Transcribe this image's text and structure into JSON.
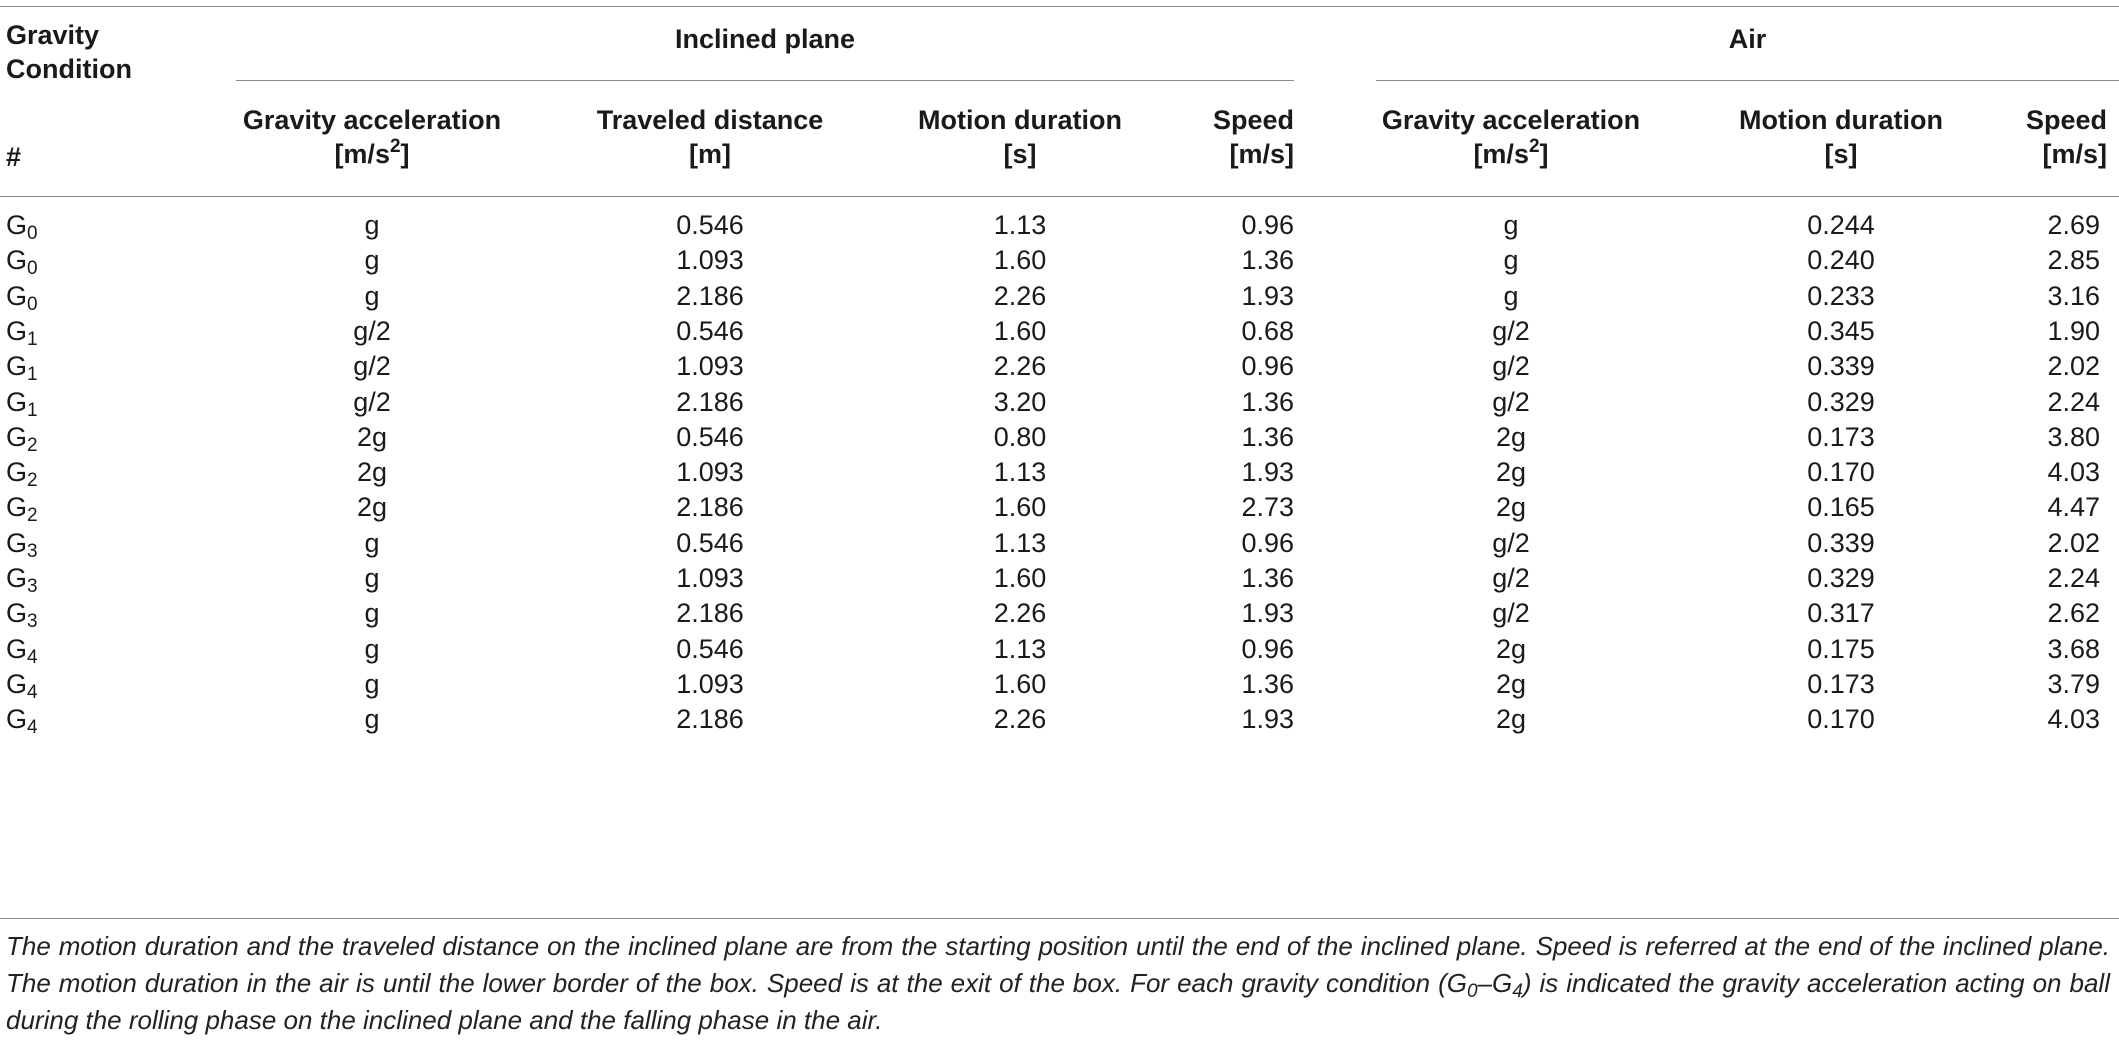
{
  "header": {
    "group_label_line1": "Gravity",
    "group_label_line2": "Condition",
    "hash": "#",
    "inclined_plane": "Inclined plane",
    "air": "Air",
    "ip_cols": [
      {
        "line1": "Gravity acceleration",
        "line2_pre": "[m/s",
        "line2_sup": "2",
        "line2_post": "]"
      },
      {
        "line1": "Traveled distance",
        "line2": "[m]"
      },
      {
        "line1": "Motion duration",
        "line2": "[s]"
      },
      {
        "line1": "Speed",
        "line2": "[m/s]"
      }
    ],
    "air_cols": [
      {
        "line1": "Gravity acceleration",
        "line2_pre": "[m/s",
        "line2_sup": "2",
        "line2_post": "]"
      },
      {
        "line1": "Motion duration",
        "line2": "[s]"
      },
      {
        "line1": "Speed",
        "line2": "[m/s]"
      }
    ]
  },
  "rows": [
    {
      "g": "G",
      "sub": "0",
      "ip_acc": "g",
      "dist": "0.546",
      "ip_dur": "1.13",
      "ip_speed": "0.96",
      "air_acc": "g",
      "air_dur": "0.244",
      "air_speed": "2.69"
    },
    {
      "g": "G",
      "sub": "0",
      "ip_acc": "g",
      "dist": "1.093",
      "ip_dur": "1.60",
      "ip_speed": "1.36",
      "air_acc": "g",
      "air_dur": "0.240",
      "air_speed": "2.85"
    },
    {
      "g": "G",
      "sub": "0",
      "ip_acc": "g",
      "dist": "2.186",
      "ip_dur": "2.26",
      "ip_speed": "1.93",
      "air_acc": "g",
      "air_dur": "0.233",
      "air_speed": "3.16"
    },
    {
      "g": "G",
      "sub": "1",
      "ip_acc": "g/2",
      "dist": "0.546",
      "ip_dur": "1.60",
      "ip_speed": "0.68",
      "air_acc": "g/2",
      "air_dur": "0.345",
      "air_speed": "1.90"
    },
    {
      "g": "G",
      "sub": "1",
      "ip_acc": "g/2",
      "dist": "1.093",
      "ip_dur": "2.26",
      "ip_speed": "0.96",
      "air_acc": "g/2",
      "air_dur": "0.339",
      "air_speed": "2.02"
    },
    {
      "g": "G",
      "sub": "1",
      "ip_acc": "g/2",
      "dist": "2.186",
      "ip_dur": "3.20",
      "ip_speed": "1.36",
      "air_acc": "g/2",
      "air_dur": "0.329",
      "air_speed": "2.24"
    },
    {
      "g": "G",
      "sub": "2",
      "ip_acc": "2g",
      "dist": "0.546",
      "ip_dur": "0.80",
      "ip_speed": "1.36",
      "air_acc": "2g",
      "air_dur": "0.173",
      "air_speed": "3.80"
    },
    {
      "g": "G",
      "sub": "2",
      "ip_acc": "2g",
      "dist": "1.093",
      "ip_dur": "1.13",
      "ip_speed": "1.93",
      "air_acc": "2g",
      "air_dur": "0.170",
      "air_speed": "4.03"
    },
    {
      "g": "G",
      "sub": "2",
      "ip_acc": "2g",
      "dist": "2.186",
      "ip_dur": "1.60",
      "ip_speed": "2.73",
      "air_acc": "2g",
      "air_dur": "0.165",
      "air_speed": "4.47"
    },
    {
      "g": "G",
      "sub": "3",
      "ip_acc": "g",
      "dist": "0.546",
      "ip_dur": "1.13",
      "ip_speed": "0.96",
      "air_acc": "g/2",
      "air_dur": "0.339",
      "air_speed": "2.02"
    },
    {
      "g": "G",
      "sub": "3",
      "ip_acc": "g",
      "dist": "1.093",
      "ip_dur": "1.60",
      "ip_speed": "1.36",
      "air_acc": "g/2",
      "air_dur": "0.329",
      "air_speed": "2.24"
    },
    {
      "g": "G",
      "sub": "3",
      "ip_acc": "g",
      "dist": "2.186",
      "ip_dur": "2.26",
      "ip_speed": "1.93",
      "air_acc": "g/2",
      "air_dur": "0.317",
      "air_speed": "2.62"
    },
    {
      "g": "G",
      "sub": "4",
      "ip_acc": "g",
      "dist": "0.546",
      "ip_dur": "1.13",
      "ip_speed": "0.96",
      "air_acc": "2g",
      "air_dur": "0.175",
      "air_speed": "3.68"
    },
    {
      "g": "G",
      "sub": "4",
      "ip_acc": "g",
      "dist": "1.093",
      "ip_dur": "1.60",
      "ip_speed": "1.36",
      "air_acc": "2g",
      "air_dur": "0.173",
      "air_speed": "3.79"
    },
    {
      "g": "G",
      "sub": "4",
      "ip_acc": "g",
      "dist": "2.186",
      "ip_dur": "2.26",
      "ip_speed": "1.93",
      "air_acc": "2g",
      "air_dur": "0.170",
      "air_speed": "4.03"
    }
  ],
  "note": {
    "part1": "The motion duration and the traveled distance on the inclined plane are from the starting position until the end of the inclined plane. Speed is referred at the end of the inclined plane. The motion duration in the air is until the lower border of the box. Speed is at the exit of the box. For each gravity condition (G",
    "sub_a": "0",
    "dash": "–G",
    "sub_b": "4",
    "part2": ") is indicated the gravity acceleration acting on ball during the rolling phase on the inclined plane and the falling phase in the air."
  }
}
